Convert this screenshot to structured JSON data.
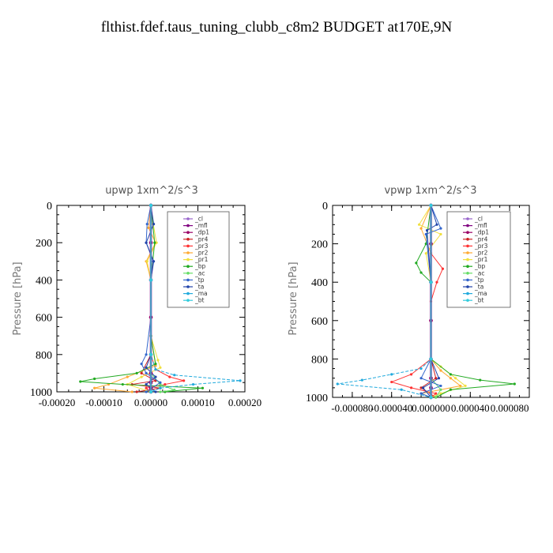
{
  "figure": {
    "title": "flthist.fdef.taus_tuning_clubb_c8m2  BUDGET at170E,9N"
  },
  "legend_entries": [
    {
      "name": "_cl",
      "color": "#9966cc",
      "marker": "+"
    },
    {
      "name": "_mfl",
      "color": "#800080",
      "marker": "+"
    },
    {
      "name": "_dp1",
      "color": "#990066",
      "marker": "dot"
    },
    {
      "name": "_pr4",
      "color": "#cc2222",
      "marker": "dot"
    },
    {
      "name": "_pr3",
      "color": "#ff3333",
      "marker": "o"
    },
    {
      "name": "_pr2",
      "color": "#ffaa33",
      "marker": "+"
    },
    {
      "name": "_pr1",
      "color": "#f0e040",
      "marker": "o"
    },
    {
      "name": "_bp",
      "color": "#22aa22",
      "marker": "x"
    },
    {
      "name": "_ac",
      "color": "#66dd66",
      "marker": "o"
    },
    {
      "name": "_tp",
      "color": "#3366cc",
      "marker": "+"
    },
    {
      "name": "_ta",
      "color": "#2244aa",
      "marker": "+"
    },
    {
      "name": "_ma",
      "color": "#22aadd",
      "marker": "-"
    },
    {
      "name": "_bt",
      "color": "#33ccdd",
      "marker": "dot"
    }
  ],
  "chart_data": [
    {
      "type": "line",
      "title": "upwp   1xm^2/s^3",
      "ylabel": "Pressure [hPa]",
      "xlabel": "",
      "xlim": [
        -0.0002,
        0.0002
      ],
      "ylim": [
        1000,
        0
      ],
      "x_ticks": [
        -0.0002,
        -0.0001,
        0.0,
        0.0001,
        0.0002
      ],
      "x_tick_labels": [
        "-0.00020",
        "-0.00010",
        "0.00000",
        "0.00010",
        "0.00020"
      ],
      "y_ticks": [
        0,
        200,
        400,
        600,
        800,
        1000
      ],
      "y_tick_labels": [
        "0",
        "200",
        "400",
        "600",
        "800",
        "1000"
      ],
      "legend_position": "top-right",
      "series": [
        {
          "name": "_cl",
          "color": "#9966cc",
          "pressure": [
            0,
            200,
            400,
            600,
            800,
            900,
            950,
            980,
            1000
          ],
          "values": [
            0,
            0,
            0,
            0,
            0,
            0,
            0,
            0,
            0
          ]
        },
        {
          "name": "_mfl",
          "color": "#800080",
          "pressure": [
            0,
            200,
            400,
            600,
            800,
            900,
            950,
            980,
            1000
          ],
          "values": [
            0,
            0,
            0,
            0,
            0,
            0,
            0,
            0,
            0
          ]
        },
        {
          "name": "_dp1",
          "color": "#990066",
          "pressure": [
            0,
            200,
            400,
            600,
            800,
            900,
            950,
            980,
            1000
          ],
          "values": [
            0,
            0,
            0,
            0,
            0,
            0,
            0,
            0,
            0
          ]
        },
        {
          "name": "_pr4",
          "color": "#cc2222",
          "pressure": [
            0,
            400,
            800,
            900,
            940,
            960,
            980,
            1000
          ],
          "values": [
            0,
            0,
            0,
            -2e-05,
            1e-05,
            -4e-05,
            2e-05,
            -3e-05
          ]
        },
        {
          "name": "_pr3",
          "color": "#ff3333",
          "pressure": [
            0,
            400,
            800,
            880,
            920,
            940,
            960,
            980,
            1000
          ],
          "values": [
            0,
            0,
            0,
            1e-05,
            4e-05,
            7e-05,
            3e-05,
            -1e-05,
            0
          ]
        },
        {
          "name": "_pr2",
          "color": "#ffaa33",
          "pressure": [
            0,
            120,
            200,
            300,
            400,
            700,
            860,
            920,
            960,
            980,
            1000
          ],
          "values": [
            0,
            -5e-06,
            1e-05,
            -1e-05,
            0,
            0,
            1e-05,
            -5e-05,
            -9e-05,
            -0.00012,
            -4e-05
          ]
        },
        {
          "name": "_pr1",
          "color": "#f0e040",
          "pressure": [
            0,
            100,
            200,
            300,
            400,
            700,
            830,
            870,
            920,
            960,
            1000
          ],
          "values": [
            0,
            5e-06,
            1.2e-05,
            -8e-06,
            0,
            0,
            1.5e-05,
            2e-05,
            -2e-05,
            -5e-05,
            0
          ]
        },
        {
          "name": "_bp",
          "color": "#22aa22",
          "pressure": [
            0,
            200,
            400,
            700,
            850,
            900,
            930,
            945,
            960,
            980,
            1000
          ],
          "values": [
            0,
            8e-06,
            0,
            0,
            1e-05,
            -3e-05,
            -0.00012,
            -0.00015,
            -6e-05,
            0.00011,
            3e-05
          ]
        },
        {
          "name": "_ac",
          "color": "#66dd66",
          "pressure": [
            0,
            400,
            900,
            960,
            990,
            1000
          ],
          "values": [
            0,
            0,
            0,
            2e-05,
            5e-05,
            2e-05
          ]
        },
        {
          "name": "_tp",
          "color": "#3366cc",
          "pressure": [
            0,
            100,
            200,
            300,
            400,
            600,
            800,
            850,
            900,
            950,
            1000
          ],
          "values": [
            0,
            -8e-06,
            -1e-05,
            5e-06,
            0,
            0,
            -1e-05,
            -2e-05,
            -1e-05,
            2e-05,
            -1e-05
          ]
        },
        {
          "name": "_ta",
          "color": "#2244aa",
          "pressure": [
            0,
            100,
            200,
            300,
            400,
            800,
            870,
            920,
            960,
            1000
          ],
          "values": [
            0,
            6e-06,
            -1e-05,
            6e-06,
            0,
            0,
            -1e-05,
            1e-05,
            -1e-05,
            1e-05
          ]
        },
        {
          "name": "_ma",
          "color": "#22aadd",
          "pressure": [
            0,
            400,
            800,
            880,
            910,
            940,
            960,
            980,
            1000
          ],
          "values": [
            0,
            0,
            0,
            1e-05,
            5e-05,
            0.00019,
            9e-05,
            2e-05,
            0
          ]
        },
        {
          "name": "_bt",
          "color": "#33ccdd",
          "pressure": [
            0,
            400,
            800,
            1000
          ],
          "values": [
            0,
            0,
            0,
            0
          ]
        }
      ]
    },
    {
      "type": "line",
      "title": "vpwp   1xm^2/s^3",
      "ylabel": "Pressure [hPa]",
      "xlabel": "",
      "xlim": [
        -0.0001,
        0.0001
      ],
      "ylim": [
        1000,
        0
      ],
      "x_ticks": [
        -8e-05,
        -4e-05,
        0.0,
        4e-05,
        8e-05
      ],
      "x_tick_labels": [
        "-0.000080",
        "-0.000040",
        "0.000000",
        "0.000040",
        "0.000080"
      ],
      "y_ticks": [
        0,
        200,
        400,
        600,
        800,
        1000
      ],
      "y_tick_labels": [
        "0",
        "200",
        "400",
        "600",
        "800",
        "1000"
      ],
      "legend_position": "top-right",
      "series": [
        {
          "name": "_cl",
          "color": "#9966cc",
          "pressure": [
            0,
            200,
            400,
            600,
            800,
            900,
            950,
            1000
          ],
          "values": [
            0,
            0,
            0,
            0,
            0,
            0,
            0,
            0
          ]
        },
        {
          "name": "_mfl",
          "color": "#800080",
          "pressure": [
            0,
            200,
            400,
            600,
            800,
            900,
            950,
            1000
          ],
          "values": [
            0,
            0,
            0,
            0,
            0,
            0,
            0,
            0
          ]
        },
        {
          "name": "_dp1",
          "color": "#990066",
          "pressure": [
            0,
            200,
            400,
            600,
            800,
            900,
            950,
            1000
          ],
          "values": [
            0,
            0,
            0,
            0,
            0,
            0,
            0,
            0
          ]
        },
        {
          "name": "_pr4",
          "color": "#cc2222",
          "pressure": [
            0,
            400,
            800,
            900,
            950,
            1000
          ],
          "values": [
            0,
            0,
            0,
            5e-06,
            -1e-05,
            5e-06
          ]
        },
        {
          "name": "_pr3",
          "color": "#ff3333",
          "pressure": [
            0,
            250,
            330,
            400,
            500,
            800,
            880,
            920,
            950,
            980,
            1000
          ],
          "values": [
            0,
            0,
            1.2e-05,
            6e-06,
            0,
            0,
            -2e-05,
            -4e-05,
            -2e-05,
            5e-06,
            0
          ]
        },
        {
          "name": "_pr2",
          "color": "#ffaa33",
          "pressure": [
            0,
            120,
            250,
            400,
            800,
            860,
            900,
            940,
            980,
            1000
          ],
          "values": [
            0,
            -1e-05,
            0,
            0,
            0,
            1e-05,
            2e-05,
            3e-05,
            -1e-05,
            0
          ]
        },
        {
          "name": "_pr1",
          "color": "#f0e040",
          "pressure": [
            0,
            100,
            150,
            250,
            400,
            800,
            840,
            900,
            940,
            980,
            1000
          ],
          "values": [
            0,
            -1.2e-05,
            1e-05,
            -5e-06,
            0,
            0,
            1e-05,
            2.5e-05,
            3.5e-05,
            1e-05,
            0
          ]
        },
        {
          "name": "_bp",
          "color": "#22aa22",
          "pressure": [
            0,
            200,
            300,
            350,
            400,
            800,
            880,
            910,
            930,
            960,
            1000
          ],
          "values": [
            0,
            -5e-06,
            -1.5e-05,
            -1e-05,
            0,
            0,
            2e-05,
            5e-05,
            8.5e-05,
            2e-05,
            5e-06
          ]
        },
        {
          "name": "_ac",
          "color": "#66dd66",
          "pressure": [
            0,
            400,
            900,
            960,
            1000
          ],
          "values": [
            0,
            0,
            0,
            1e-05,
            5e-06
          ]
        },
        {
          "name": "_tp",
          "color": "#3366cc",
          "pressure": [
            0,
            120,
            150,
            400,
            800,
            900,
            940,
            980,
            1000
          ],
          "values": [
            0,
            1e-05,
            -5e-06,
            0,
            0,
            -1e-05,
            1e-05,
            -1e-05,
            0
          ]
        },
        {
          "name": "_ta",
          "color": "#2244aa",
          "pressure": [
            0,
            100,
            130,
            400,
            800,
            900,
            950,
            1000
          ],
          "values": [
            0,
            6e-06,
            -4e-06,
            0,
            0,
            8e-06,
            -8e-06,
            0
          ]
        },
        {
          "name": "_ma",
          "color": "#22aadd",
          "pressure": [
            0,
            400,
            800,
            850,
            880,
            910,
            930,
            960,
            1000
          ],
          "values": [
            0,
            0,
            0,
            -1e-05,
            -4e-05,
            -7e-05,
            -9.5e-05,
            -3e-05,
            0
          ]
        },
        {
          "name": "_bt",
          "color": "#33ccdd",
          "pressure": [
            0,
            400,
            800,
            1000
          ],
          "values": [
            0,
            0,
            0,
            0
          ]
        }
      ]
    }
  ]
}
